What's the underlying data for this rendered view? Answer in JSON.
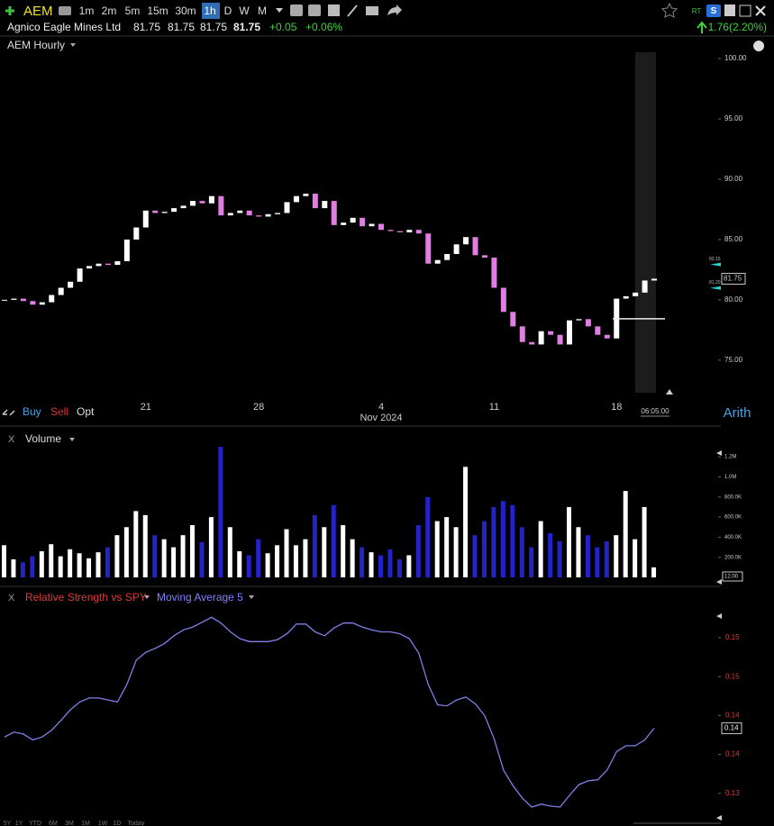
{
  "toolbar": {
    "symbol": "AEM",
    "intervals": [
      "1m",
      "2m",
      "5m",
      "15m",
      "30m",
      "1h",
      "D",
      "W",
      "M"
    ],
    "active_interval": "1h",
    "badge": "RT"
  },
  "quote": {
    "name": "Agnico Eagle Mines Ltd",
    "prices": [
      "81.75",
      "81.75",
      "81.75",
      "81.75"
    ],
    "change": "+0.05",
    "change_pct": "+0.06%",
    "day_change": "1.76(2.20%)"
  },
  "price_panel": {
    "title": "AEM Hourly",
    "type": "candlestick",
    "up_color": "#ffffff",
    "down_color": "#e27de2",
    "categories": [
      null,
      null,
      null,
      null,
      null,
      null,
      null,
      null,
      null,
      null,
      null,
      null,
      null,
      null,
      null,
      "21",
      null,
      null,
      null,
      null,
      null,
      null,
      null,
      null,
      null,
      null,
      null,
      "28",
      null,
      null,
      null,
      null,
      null,
      null,
      null,
      null,
      null,
      null,
      null,
      null,
      "4",
      null,
      null,
      null,
      null,
      null,
      null,
      null,
      null,
      null,
      null,
      null,
      "11",
      null,
      null,
      null,
      null,
      null,
      null,
      null,
      null,
      null,
      null,
      null,
      null,
      "18",
      null,
      null,
      null,
      null
    ],
    "month_label": "Nov 2024",
    "closes": [
      80.0,
      80.1,
      79.9,
      79.6,
      79.8,
      80.4,
      81.0,
      81.5,
      82.6,
      82.8,
      83.0,
      82.9,
      83.2,
      85.0,
      86.0,
      87.4,
      87.2,
      87.3,
      87.6,
      87.8,
      88.2,
      88.0,
      88.6,
      87.0,
      87.2,
      87.4,
      87.0,
      86.9,
      87.1,
      87.2,
      88.1,
      88.6,
      88.8,
      87.6,
      88.2,
      86.2,
      86.4,
      86.8,
      86.1,
      86.3,
      85.8,
      85.7,
      85.6,
      85.8,
      85.5,
      83.0,
      83.3,
      83.8,
      84.6,
      85.2,
      83.7,
      83.5,
      81.0,
      79.0,
      77.8,
      76.5,
      76.3,
      77.4,
      77.1,
      76.3,
      78.3,
      78.4,
      77.8,
      77.1,
      76.8,
      80.1,
      80.3,
      80.6,
      81.6,
      81.75
    ],
    "ylim": [
      72.0,
      100.75
    ],
    "yticks": [
      {
        "value": 75,
        "label": "75.00"
      },
      {
        "value": 80,
        "label": "80.00"
      },
      {
        "value": 85,
        "label": "85.00"
      },
      {
        "value": 90,
        "label": "90.00"
      },
      {
        "value": 95,
        "label": "95.00"
      },
      {
        "value": 100,
        "label": "100.00"
      }
    ],
    "price_tag": 81.75,
    "markers": [
      {
        "value": 83.15,
        "label": "83.15"
      },
      {
        "value": 81.2,
        "label": "81.20"
      }
    ],
    "level_line": 78.43,
    "time_label": "06:05:00",
    "scale": "Arith",
    "trade": [
      "Buy",
      "Sell",
      "Opt"
    ]
  },
  "volume_panel": {
    "close_label": "X",
    "title": "Volume",
    "type": "bar",
    "up_color": "#ffffff",
    "down_color": "#2323c8",
    "values": [
      320000,
      180000,
      150000,
      210000,
      260000,
      330000,
      210000,
      280000,
      240000,
      190000,
      250000,
      300000,
      420000,
      500000,
      660000,
      620000,
      420000,
      380000,
      300000,
      420000,
      520000,
      350000,
      600000,
      1300000,
      500000,
      260000,
      220000,
      380000,
      240000,
      320000,
      480000,
      320000,
      380000,
      620000,
      500000,
      720000,
      520000,
      380000,
      300000,
      250000,
      220000,
      280000,
      180000,
      220000,
      520000,
      800000,
      560000,
      600000,
      500000,
      1100000,
      420000,
      560000,
      700000,
      760000,
      720000,
      500000,
      300000,
      560000,
      440000,
      360000,
      700000,
      500000,
      420000,
      300000,
      360000,
      420000,
      860000,
      380000,
      700000,
      100000
    ],
    "ylim": [
      0,
      1300000
    ],
    "yticks": [
      {
        "value": 200000,
        "label": "200.0K"
      },
      {
        "value": 400000,
        "label": "400.0K"
      },
      {
        "value": 600000,
        "label": "600.0K"
      },
      {
        "value": 800000,
        "label": "800.0K"
      },
      {
        "value": 1000000,
        "label": "1.0M"
      },
      {
        "value": 1200000,
        "label": "1.2M"
      }
    ],
    "readout": "12.00"
  },
  "rs_panel": {
    "close_label": "X",
    "title": "Relative Strength vs SPY",
    "overlay": "Moving Average 5",
    "type": "line",
    "color": "#7f7fe6",
    "values": [
      0.1398,
      0.1403,
      0.1401,
      0.1395,
      0.1398,
      0.1405,
      0.1415,
      0.1426,
      0.1434,
      0.1438,
      0.1438,
      0.1436,
      0.1434,
      0.1452,
      0.1477,
      0.1485,
      0.1489,
      0.1494,
      0.1502,
      0.1508,
      0.1511,
      0.1516,
      0.1521,
      0.1515,
      0.1506,
      0.1499,
      0.1496,
      0.1496,
      0.1496,
      0.1498,
      0.1504,
      0.1514,
      0.1514,
      0.1506,
      0.1502,
      0.151,
      0.1515,
      0.1515,
      0.1511,
      0.1508,
      0.1506,
      0.1506,
      0.1504,
      0.1499,
      0.1484,
      0.1452,
      0.1431,
      0.143,
      0.1436,
      0.1439,
      0.1432,
      0.142,
      0.1396,
      0.1364,
      0.1348,
      0.1335,
      0.1326,
      0.1329,
      0.1327,
      0.1326,
      0.1338,
      0.1349,
      0.1353,
      0.1354,
      0.1364,
      0.1383,
      0.1389,
      0.1389,
      0.1395,
      0.1407
    ],
    "ylim": [
      0.1313,
      0.1549
    ],
    "yticks": [
      {
        "value": 0.15,
        "label": "0.15"
      },
      {
        "value": 0.146,
        "label": "0.15"
      },
      {
        "value": 0.142,
        "label": "0.14"
      },
      {
        "value": 0.138,
        "label": "0.14"
      },
      {
        "value": 0.134,
        "label": "0.13"
      }
    ],
    "last_label": "0.14"
  },
  "range_buttons": [
    "5Y",
    "1Y",
    "YTD",
    "6M",
    "3M",
    "1M",
    "1W",
    "1D",
    "Today"
  ]
}
